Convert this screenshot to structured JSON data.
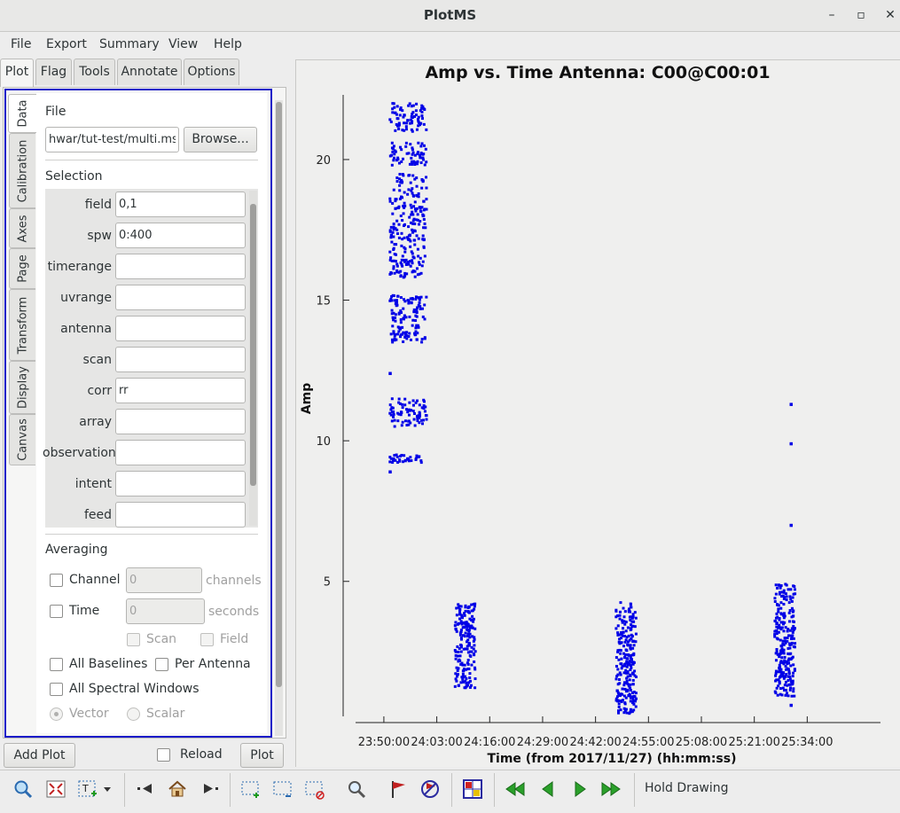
{
  "window": {
    "title": "PlotMS",
    "minimize": "–",
    "maximize": "▫",
    "close": "✕"
  },
  "menubar": [
    "File",
    "Export",
    "Summary",
    "View",
    "Help"
  ],
  "top_tabs": [
    "Plot",
    "Flag",
    "Tools",
    "Annotate",
    "Options"
  ],
  "side_tabs": [
    "Data",
    "Calibration",
    "Axes",
    "Page",
    "Transform",
    "Display",
    "Canvas"
  ],
  "data_panel": {
    "file_heading": "File",
    "file_value": "hwar/tut-test/multi.ms",
    "browse_label": "Browse...",
    "selection_heading": "Selection",
    "selection_fields": [
      {
        "label": "field",
        "value": "0,1"
      },
      {
        "label": "spw",
        "value": "0:400"
      },
      {
        "label": "timerange",
        "value": ""
      },
      {
        "label": "uvrange",
        "value": ""
      },
      {
        "label": "antenna",
        "value": ""
      },
      {
        "label": "scan",
        "value": ""
      },
      {
        "label": "corr",
        "value": "rr"
      },
      {
        "label": "array",
        "value": ""
      },
      {
        "label": "observation",
        "value": ""
      },
      {
        "label": "intent",
        "value": ""
      },
      {
        "label": "feed",
        "value": ""
      }
    ],
    "averaging_heading": "Averaging",
    "channel_label": "Channel",
    "channel_value": "0",
    "channel_unit": "channels",
    "time_label": "Time",
    "time_value": "0",
    "time_unit": "seconds",
    "scan_label": "Scan",
    "field_label": "Field",
    "all_baselines_label": "All Baselines",
    "per_antenna_label": "Per Antenna",
    "all_spw_label": "All Spectral Windows",
    "vector_label": "Vector",
    "scalar_label": "Scalar"
  },
  "bottom_buttons": {
    "add_plot": "Add Plot",
    "reload": "Reload",
    "plot": "Plot"
  },
  "toolbar": {
    "hold_drawing": "Hold Drawing",
    "icons": [
      "zoom-icon",
      "zoom-fit-icon",
      "text-annotate-icon",
      "dropdown-arrow-icon",
      "step-back-icon",
      "home-icon",
      "step-forward-icon",
      "select-region-icon",
      "subtract-region-icon",
      "clear-region-icon",
      "locate-icon",
      "flag-icon",
      "unflag-icon",
      "iterate-grid-icon",
      "first-page-icon",
      "previous-page-icon",
      "next-page-icon",
      "last-page-icon"
    ]
  },
  "colors": {
    "points": "#0000e6",
    "accent_border": "#1a1ac8"
  },
  "chart_data": {
    "type": "scatter",
    "title": "Amp vs. Time Antenna: C00@C00:01",
    "xlabel": "Time (from 2017/11/27) (hh:mm:ss)",
    "ylabel": "Amp",
    "x_ticks": [
      "23:50:00",
      "24:03:00",
      "24:16:00",
      "24:29:00",
      "24:42:00",
      "24:55:00",
      "25:08:00",
      "25:21:00",
      "25:34:00"
    ],
    "y_ticks": [
      5,
      10,
      15,
      20
    ],
    "ylim": [
      0.2,
      22.3
    ],
    "xlim_minutes_from_2350": [
      -10,
      122
    ],
    "series": [
      {
        "clusters": [
          {
            "x_range": [
              "23:51:30",
              "24:00:30"
            ],
            "y_ranges": [
              [
                21.0,
                22.0
              ],
              [
                19.8,
                20.6
              ],
              [
                15.8,
                19.5
              ],
              [
                14.2,
                15.2
              ],
              [
                13.5,
                14.1
              ],
              [
                10.5,
                11.5
              ],
              [
                9.2,
                9.5
              ]
            ]
          },
          {
            "x_range": [
              "24:07:30",
              "24:12:30"
            ],
            "y_ranges": [
              [
                1.2,
                4.2
              ]
            ]
          },
          {
            "x_range": [
              "24:47:00",
              "24:52:00"
            ],
            "y_ranges": [
              [
                0.3,
                4.3
              ]
            ]
          },
          {
            "x_range": [
              "25:26:00",
              "25:31:00"
            ],
            "y_ranges": [
              [
                0.8,
                4.9
              ]
            ]
          }
        ],
        "outliers": [
          {
            "x": "23:51:30",
            "y": 12.4
          },
          {
            "x": "23:51:30",
            "y": 8.9
          },
          {
            "x": "25:30:00",
            "y": 11.3
          },
          {
            "x": "25:30:00",
            "y": 9.9
          },
          {
            "x": "25:30:00",
            "y": 7.0
          },
          {
            "x": "25:30:00",
            "y": 0.6
          }
        ]
      }
    ]
  }
}
